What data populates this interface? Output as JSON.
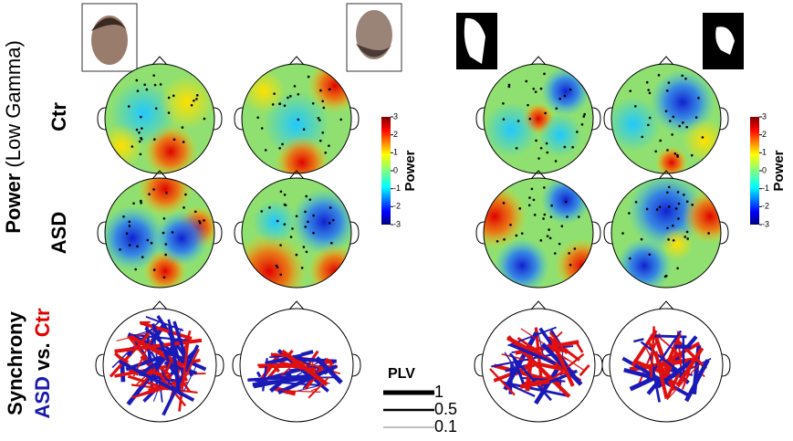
{
  "ylabel": {
    "main": "Power",
    "sub": "(Low Gamma)"
  },
  "rows": [
    "Ctr",
    "ASD"
  ],
  "synchrony": {
    "label": "Synchrony",
    "groups": [
      "ASD",
      "vs.",
      "Ctr"
    ]
  },
  "colorbars": [
    {
      "label": "Power",
      "ticks": [
        3,
        2,
        1,
        0,
        -1,
        -2,
        -3
      ]
    },
    {
      "label": "Power",
      "ticks": [
        3,
        2,
        1,
        0,
        -1,
        -2,
        -3
      ]
    }
  ],
  "plv": {
    "title": "PLV",
    "levels": [
      1,
      0.5,
      0.1
    ]
  }
}
